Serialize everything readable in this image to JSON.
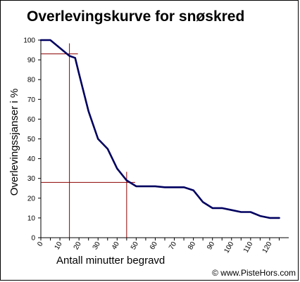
{
  "chart_data": {
    "type": "line",
    "title": "Overlevingskurve for snøskred",
    "xlabel": "Antall minutter begravd",
    "ylabel": "Overlevingssjanser i %",
    "xlim": [
      0,
      130
    ],
    "ylim": [
      0,
      100
    ],
    "x_ticks": [
      "0",
      "5",
      "10",
      "15",
      "20",
      "25",
      "30",
      "35",
      "40",
      "45",
      "50",
      "55",
      "60",
      "65",
      "70",
      "75",
      "80",
      "85",
      "90",
      "95",
      "100",
      "105",
      "110",
      "115",
      "120",
      "125"
    ],
    "x_tick_values": [
      0,
      5,
      10,
      15,
      20,
      25,
      30,
      35,
      40,
      45,
      50,
      55,
      60,
      65,
      70,
      75,
      80,
      85,
      90,
      95,
      100,
      105,
      110,
      115,
      120,
      125
    ],
    "x_tick_labels_shown": [
      "0",
      "10",
      "20",
      "30",
      "40",
      "50",
      "60",
      "70",
      "80",
      "90",
      "100",
      "110",
      "120"
    ],
    "y_ticks": [
      0,
      10,
      20,
      30,
      40,
      50,
      60,
      70,
      80,
      90,
      100
    ],
    "grid": false,
    "legend": "none",
    "series": [
      {
        "color": "#000060",
        "x": [
          0,
          5,
          10,
          15,
          18,
          20,
          25,
          30,
          35,
          40,
          45,
          50,
          55,
          60,
          65,
          70,
          75,
          80,
          85,
          90,
          95,
          100,
          105,
          110,
          115,
          120,
          125
        ],
        "y": [
          100,
          100,
          96,
          92,
          91,
          83,
          64,
          50,
          45,
          35,
          29,
          26,
          26,
          26,
          25.5,
          25.5,
          25.5,
          24,
          18,
          15,
          15,
          14,
          13,
          13,
          11,
          10,
          10
        ]
      }
    ],
    "reference_lines": [
      {
        "x": 15,
        "y": 93,
        "color": "#8b0000"
      },
      {
        "x": 45,
        "y": 28,
        "color": "#8b0000"
      }
    ]
  },
  "credit": "© www.PisteHors.com"
}
